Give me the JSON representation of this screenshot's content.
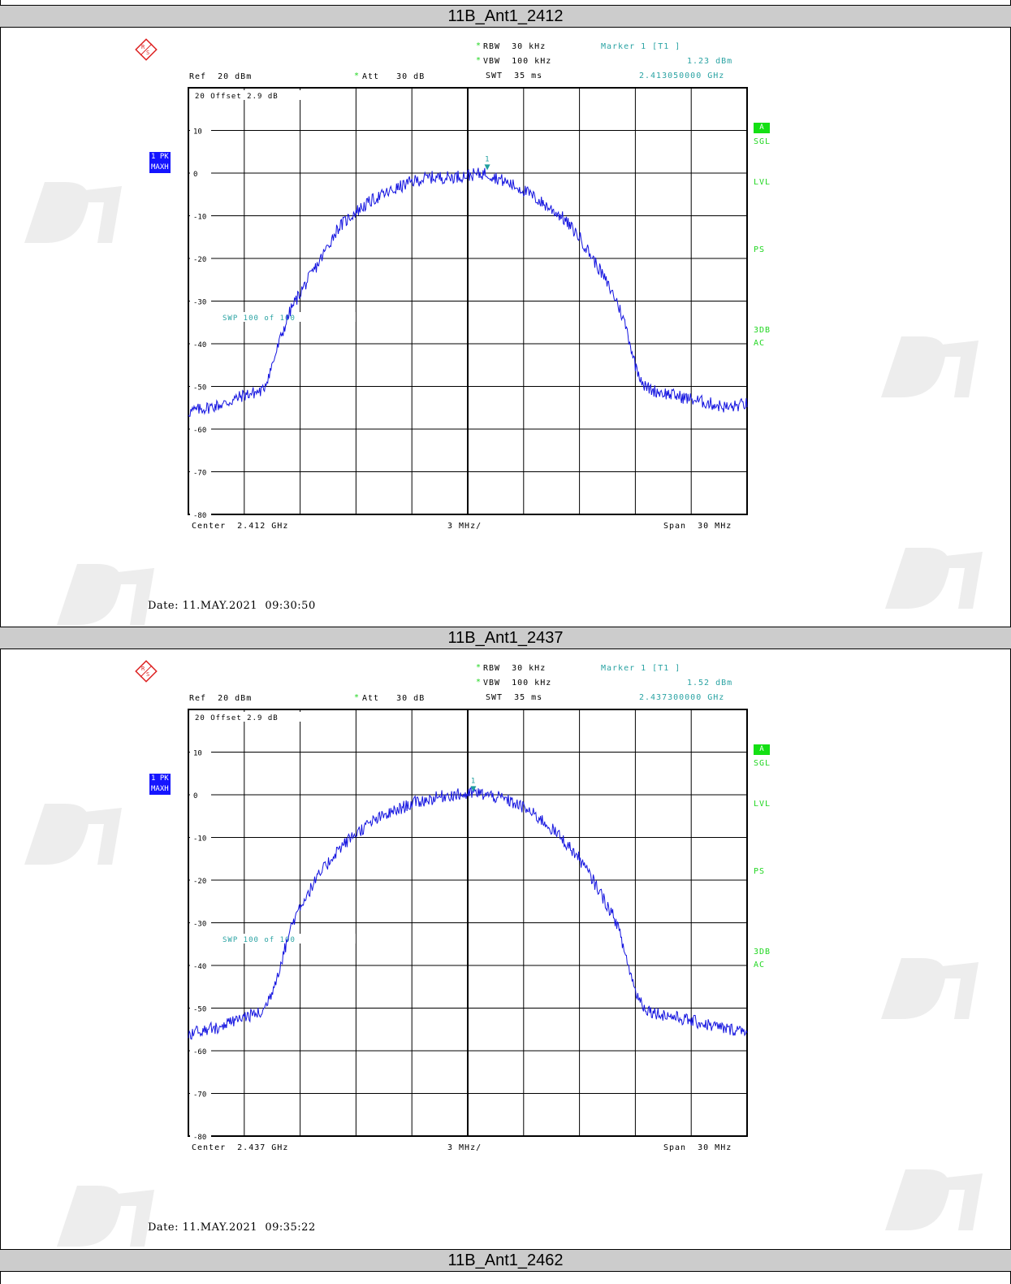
{
  "panels": [
    {
      "title": "11B_Ant1_2412",
      "rbw": "RBW  30 kHz",
      "vbw": "VBW  100 kHz",
      "swt": "SWT  35 ms",
      "marker_title": "Marker 1 [T1 ]",
      "marker_level": "1.23 dBm",
      "marker_freq": "2.413050000 GHz",
      "ref": "Ref  20 dBm",
      "att": "Att   30 dB",
      "offset": "20  Offset   2.9 dB",
      "trace_label_1": "1 PK",
      "trace_label_2": "MAXH",
      "swp": "SWP    100 of    100",
      "side_a": "A",
      "side_sgl": "SGL",
      "side_lvl": "LVL",
      "side_ps": "PS",
      "side_3db": "3DB",
      "side_ac": "AC",
      "center": "Center  2.412 GHz",
      "div": "3 MHz/",
      "span": "Span  30 MHz",
      "date": "Date: 11.MAY.2021  09:30:50",
      "marker_label": "1"
    },
    {
      "title": "11B_Ant1_2437",
      "rbw": "RBW  30 kHz",
      "vbw": "VBW  100 kHz",
      "swt": "SWT  35 ms",
      "marker_title": "Marker 1 [T1 ]",
      "marker_level": "1.52 dBm",
      "marker_freq": "2.437300000 GHz",
      "ref": "Ref  20 dBm",
      "att": "Att   30 dB",
      "offset": "20  Offset   2.9 dB",
      "trace_label_1": "1 PK",
      "trace_label_2": "MAXH",
      "swp": "SWP    100 of    100",
      "side_a": "A",
      "side_sgl": "SGL",
      "side_lvl": "LVL",
      "side_ps": "PS",
      "side_3db": "3DB",
      "side_ac": "AC",
      "center": "Center  2.437 GHz",
      "div": "3 MHz/",
      "span": "Span  30 MHz",
      "date": "Date: 11.MAY.2021  09:35:22",
      "marker_label": "1"
    }
  ],
  "bottom_title": "11B_Ant1_2462",
  "y_tick_labels": [
    "20",
    "10",
    "0",
    "-10",
    "-20",
    "-30",
    "-40",
    "-50",
    "-60",
    "-70",
    "-80"
  ],
  "colors": {
    "trace": "#1515e0",
    "marker": "#1e9e9e",
    "grid": "#000000",
    "title_bar": "#cccccc"
  },
  "chart_data": [
    {
      "type": "line",
      "title": "11B_Ant1_2412",
      "xlabel": "",
      "ylabel": "",
      "x_unit": "GHz",
      "y_unit": "dBm",
      "xlim": [
        2.397,
        2.427
      ],
      "ylim": [
        -80,
        20
      ],
      "grid": true,
      "series": [
        {
          "x": [
            2.397,
            2.399,
            2.4,
            2.401,
            2.4015,
            2.402,
            2.4025,
            2.403,
            2.404,
            2.405,
            2.406,
            2.407,
            2.408,
            2.409,
            2.41,
            2.411,
            2.412,
            2.413,
            2.414,
            2.415,
            2.416,
            2.417,
            2.418,
            2.419,
            2.42,
            2.4205,
            2.421,
            2.4215,
            2.422,
            2.423,
            2.424,
            2.425,
            2.426,
            2.427
          ],
          "values": [
            -56,
            -54,
            -52,
            -51,
            -45,
            -38,
            -32,
            -28,
            -21,
            -13,
            -9,
            -6,
            -4,
            -2,
            -1,
            -1,
            -0.5,
            0,
            -2,
            -4,
            -7,
            -10,
            -15,
            -22,
            -30,
            -36,
            -45,
            -50,
            -51,
            -52,
            -53,
            -54,
            -55,
            -54
          ]
        }
      ],
      "marker": {
        "x": 2.41305,
        "y": 1.23
      }
    },
    {
      "type": "line",
      "title": "11B_Ant1_2437",
      "xlabel": "",
      "ylabel": "",
      "x_unit": "GHz",
      "y_unit": "dBm",
      "xlim": [
        2.422,
        2.452
      ],
      "ylim": [
        -80,
        20
      ],
      "grid": true,
      "series": [
        {
          "x": [
            2.422,
            2.424,
            2.425,
            2.426,
            2.4265,
            2.427,
            2.4275,
            2.428,
            2.429,
            2.43,
            2.431,
            2.432,
            2.433,
            2.434,
            2.435,
            2.436,
            2.437,
            2.4373,
            2.438,
            2.439,
            2.44,
            2.441,
            2.442,
            2.443,
            2.444,
            2.445,
            2.4455,
            2.446,
            2.4465,
            2.447,
            2.448,
            2.449,
            2.45,
            2.451,
            2.452
          ],
          "values": [
            -56,
            -54,
            -52,
            -51,
            -46,
            -39,
            -31,
            -26,
            -19,
            -13,
            -9,
            -6,
            -4,
            -2,
            -1,
            0,
            0,
            0.5,
            0,
            -1,
            -3,
            -6,
            -10,
            -15,
            -22,
            -30,
            -38,
            -46,
            -50,
            -51,
            -52,
            -53,
            -54,
            -55,
            -55
          ]
        }
      ],
      "marker": {
        "x": 2.4373,
        "y": 1.52
      }
    }
  ]
}
